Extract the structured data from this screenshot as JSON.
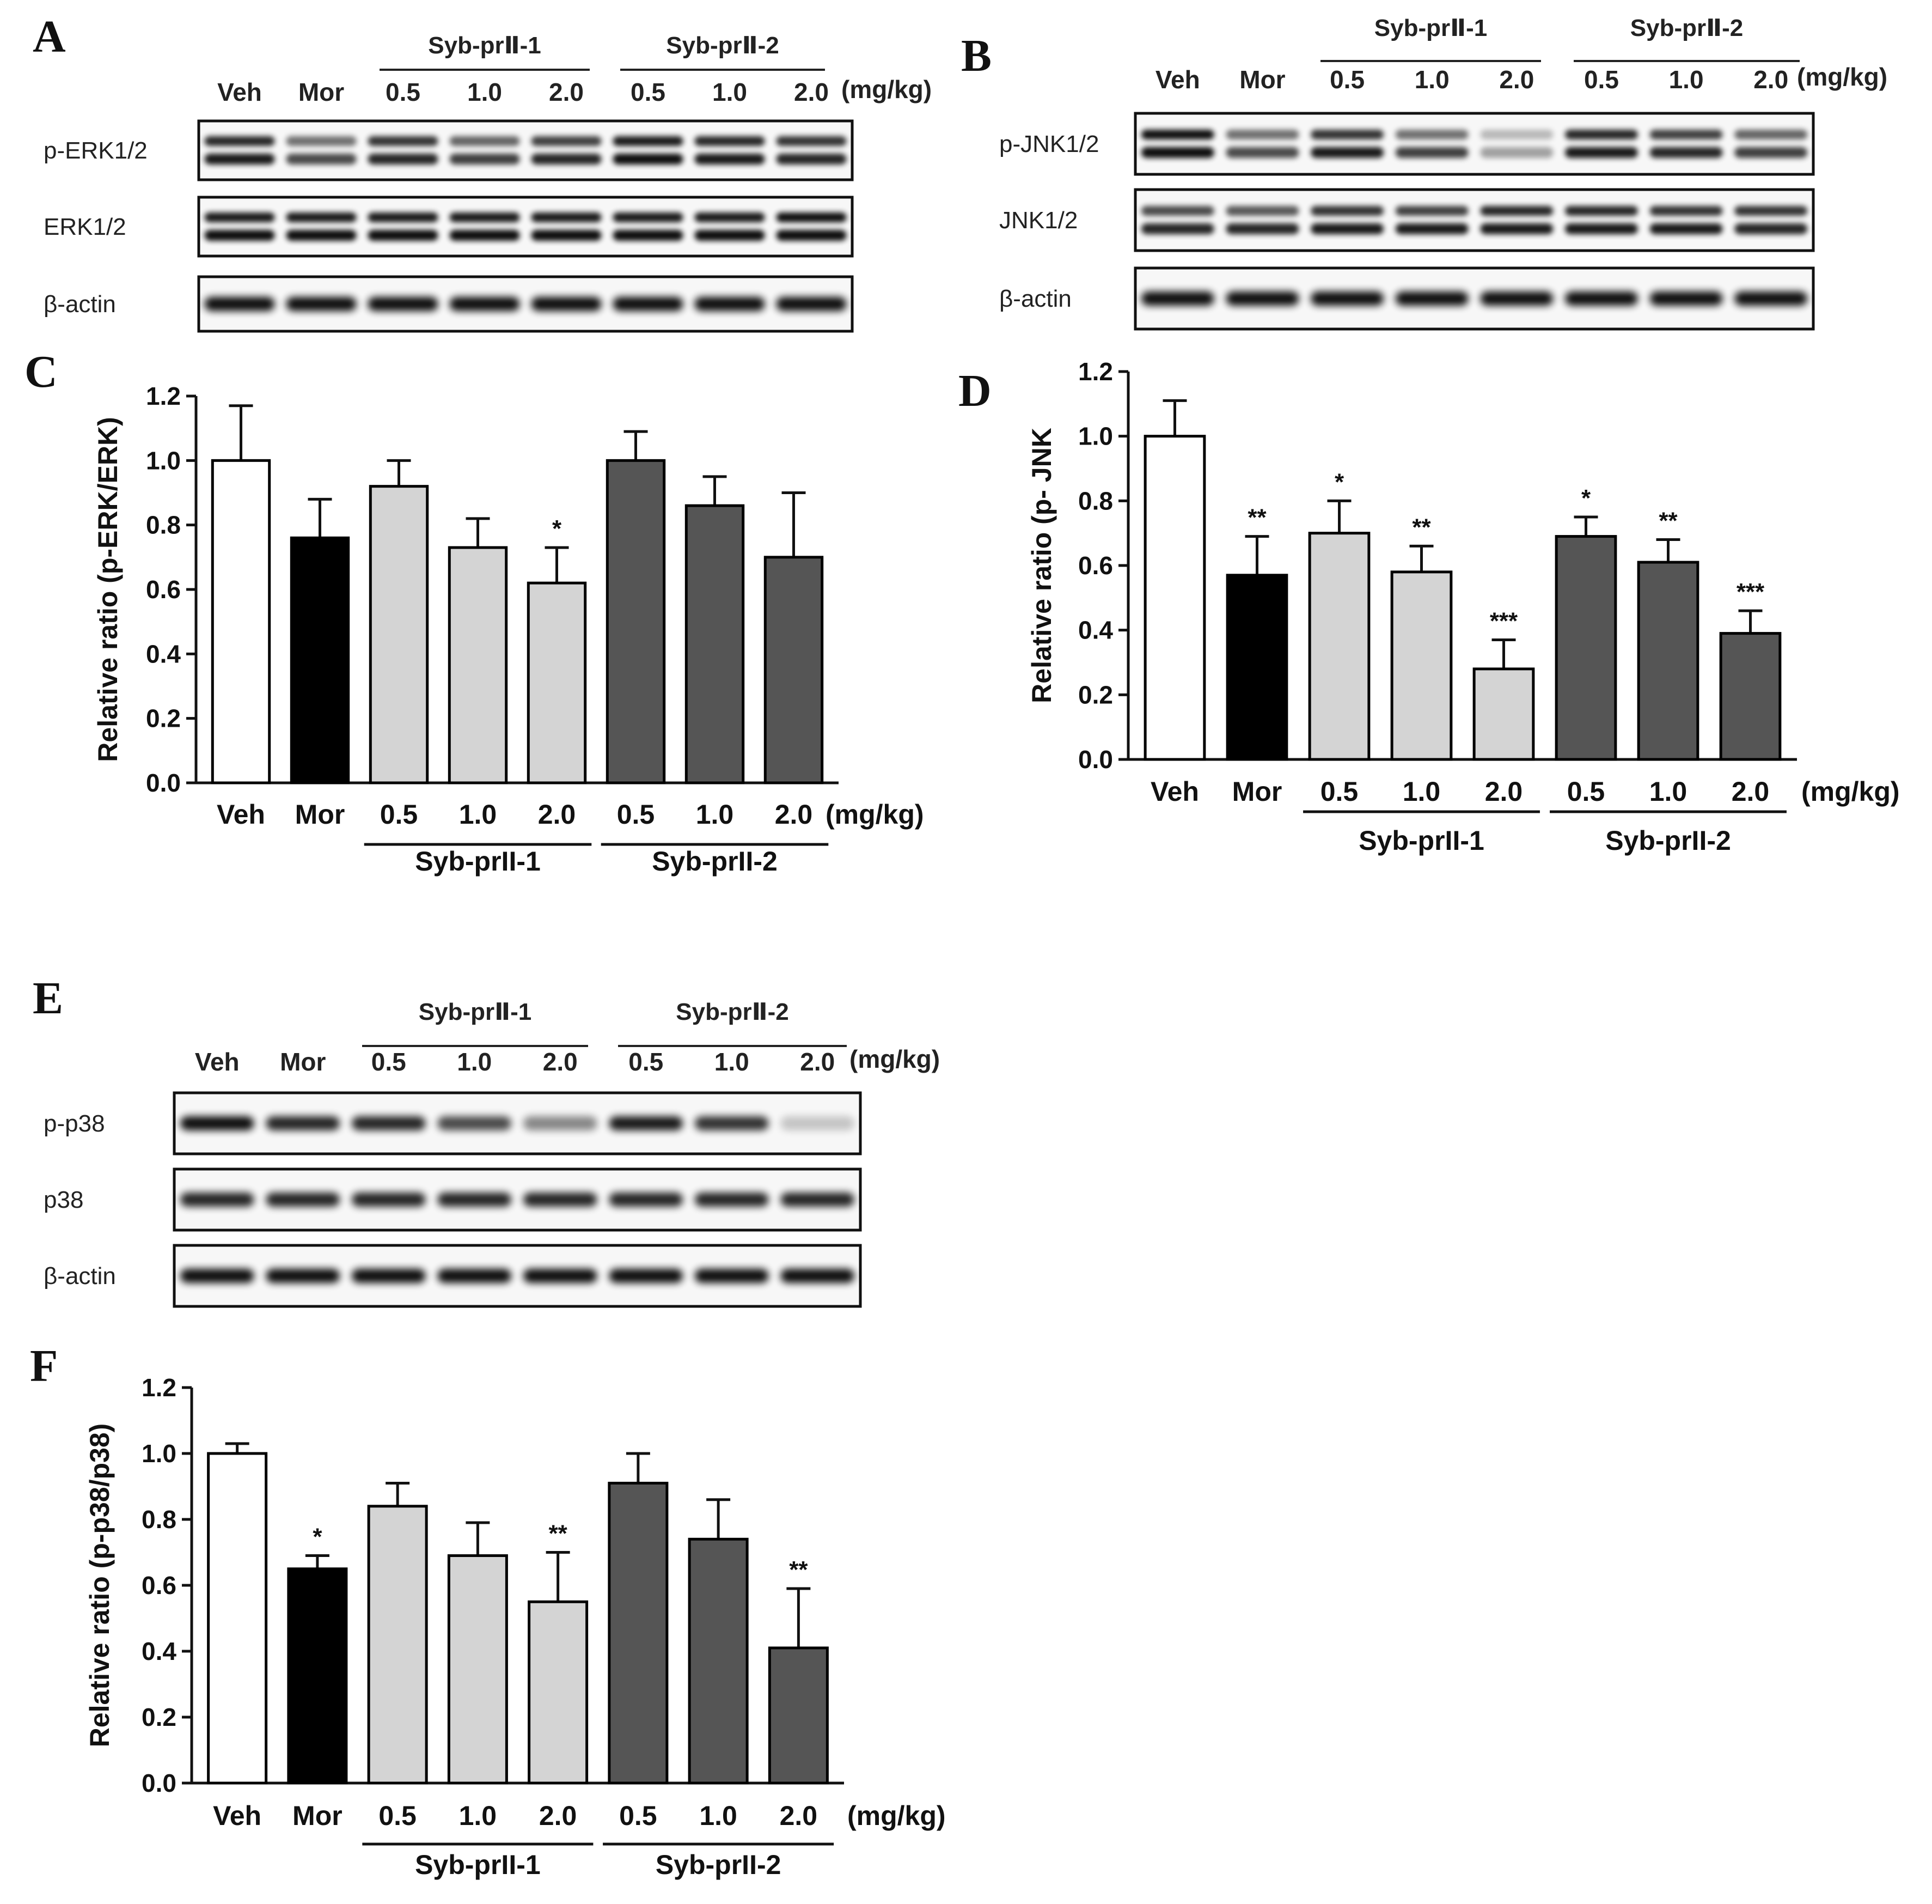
{
  "figure": {
    "lanes": [
      "Veh",
      "Mor",
      "0.5",
      "1.0",
      "2.0",
      "0.5",
      "1.0",
      "2.0"
    ],
    "blot_unit": "(mg/kg)",
    "blot_groups": [
      "Syb-prⅡ-1",
      "Syb-prⅡ-2"
    ],
    "bar_groups": [
      "Syb-prII-1",
      "Syb-prII-2"
    ],
    "unit": "(mg/kg)",
    "colors": {
      "veh": "#ffffff",
      "mor": "#000000",
      "syb1": "#d4d4d4",
      "syb2": "#555555",
      "stroke": "#000000"
    }
  },
  "blots": [
    {
      "panel": "A",
      "rows": [
        "p-ERK1/2",
        "ERK1/2",
        "β-actin"
      ]
    },
    {
      "panel": "B",
      "rows": [
        "p-JNK1/2",
        "JNK1/2",
        "β-actin"
      ]
    },
    {
      "panel": "E",
      "rows": [
        "p-p38",
        "p38",
        "β-actin"
      ]
    }
  ],
  "chart_data": [
    {
      "panel": "C",
      "type": "bar",
      "ylabel": "Relative ratio (p-ERK/ERK)",
      "ylim": [
        0,
        1.2
      ],
      "yticks": [
        "0.0",
        "0.2",
        "0.4",
        "0.6",
        "0.8",
        "1.0",
        "1.2"
      ],
      "categories": [
        "Veh",
        "Mor",
        "0.5",
        "1.0",
        "2.0",
        "0.5",
        "1.0",
        "2.0"
      ],
      "values": [
        1.0,
        0.76,
        0.92,
        0.73,
        0.62,
        1.0,
        0.86,
        0.7
      ],
      "errors": [
        0.17,
        0.12,
        0.08,
        0.09,
        0.11,
        0.09,
        0.09,
        0.2
      ],
      "significance": [
        "",
        "",
        "",
        "",
        "*",
        "",
        "",
        ""
      ],
      "groups": [
        "Syb-prII-1",
        "Syb-prII-2"
      ],
      "unit": "(mg/kg)"
    },
    {
      "panel": "D",
      "type": "bar",
      "ylabel": "Relative ratio (p- JNK",
      "ylim": [
        0,
        1.2
      ],
      "yticks": [
        "0.0",
        "0.2",
        "0.4",
        "0.6",
        "0.8",
        "1.0",
        "1.2"
      ],
      "categories": [
        "Veh",
        "Mor",
        "0.5",
        "1.0",
        "2.0",
        "0.5",
        "1.0",
        "2.0"
      ],
      "values": [
        1.0,
        0.57,
        0.7,
        0.58,
        0.28,
        0.69,
        0.61,
        0.39
      ],
      "errors": [
        0.11,
        0.12,
        0.1,
        0.08,
        0.09,
        0.06,
        0.07,
        0.07
      ],
      "significance": [
        "",
        "**",
        "*",
        "**",
        "***",
        "*",
        "**",
        "***"
      ],
      "groups": [
        "Syb-prII-1",
        "Syb-prII-2"
      ],
      "unit": "(mg/kg)"
    },
    {
      "panel": "F",
      "type": "bar",
      "ylabel": "Relative ratio (p-p38/p38)",
      "ylim": [
        0,
        1.2
      ],
      "yticks": [
        "0.0",
        "0.2",
        "0.4",
        "0.6",
        "0.8",
        "1.0",
        "1.2"
      ],
      "categories": [
        "Veh",
        "Mor",
        "0.5",
        "1.0",
        "2.0",
        "0.5",
        "1.0",
        "2.0"
      ],
      "values": [
        1.0,
        0.65,
        0.84,
        0.69,
        0.55,
        0.91,
        0.74,
        0.41
      ],
      "errors": [
        0.03,
        0.04,
        0.07,
        0.1,
        0.15,
        0.09,
        0.12,
        0.18
      ],
      "significance": [
        "",
        "*",
        "",
        "",
        "**",
        "",
        "",
        "**"
      ],
      "groups": [
        "Syb-prII-1",
        "Syb-prII-2"
      ],
      "unit": "(mg/kg)"
    }
  ]
}
